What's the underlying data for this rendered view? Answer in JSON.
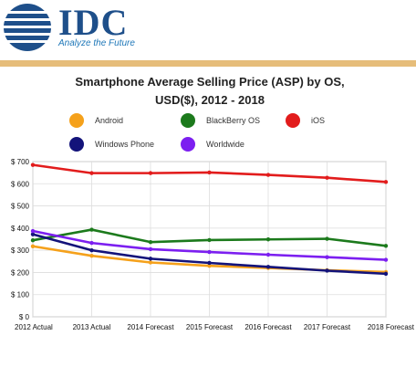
{
  "brand": {
    "name": "IDC",
    "tagline": "Analyze the Future",
    "colors": {
      "primary": "#1e4f8a",
      "accent": "#e6bd7a"
    }
  },
  "chart_data": {
    "type": "line",
    "title_line1": "Smartphone Average Selling Price (ASP) by OS,",
    "title_line2": "USD($), 2012 - 2018",
    "categories": [
      "2012 Actual",
      "2013 Actual",
      "2014 Forecast",
      "2015 Forecast",
      "2016 Forecast",
      "2017 Forecast",
      "2018 Forecast"
    ],
    "y_ticks": [
      "$ 0",
      "$ 100",
      "$ 200",
      "$ 300",
      "$ 400",
      "$ 500",
      "$ 600",
      "$ 700"
    ],
    "ylim": [
      0,
      700
    ],
    "grid": true,
    "legend_position": "top",
    "series": [
      {
        "name": "Android",
        "color": "#f5a11b",
        "values": [
          318,
          275,
          245,
          230,
          220,
          210,
          202
        ]
      },
      {
        "name": "BlackBerry OS",
        "color": "#1c7a1c",
        "values": [
          345,
          393,
          337,
          346,
          349,
          352,
          320
        ]
      },
      {
        "name": "iOS",
        "color": "#e21c1c",
        "values": [
          685,
          648,
          648,
          651,
          640,
          627,
          608
        ]
      },
      {
        "name": "Windows Phone",
        "color": "#13137a",
        "values": [
          372,
          300,
          262,
          243,
          225,
          208,
          194
        ]
      },
      {
        "name": "Worldwide",
        "color": "#7c1ff0",
        "values": [
          387,
          333,
          305,
          292,
          280,
          269,
          257
        ]
      }
    ]
  }
}
